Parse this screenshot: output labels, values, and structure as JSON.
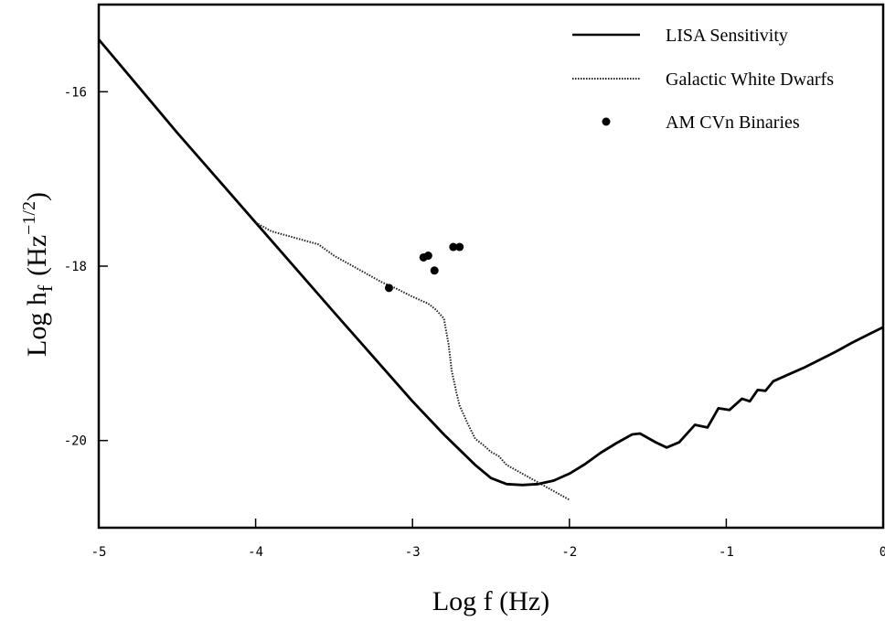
{
  "chart_data": {
    "type": "line",
    "xlabel": "Log f (Hz)",
    "ylabel": "Log h",
    "ylabel_sub": "f",
    "ylabel_unit_open": "(Hz",
    "ylabel_unit_exp": "−1/2",
    "ylabel_unit_close": ")",
    "xlim": [
      -5,
      0
    ],
    "ylim": [
      -21,
      -15
    ],
    "xticks": [
      -5,
      -4,
      -3,
      -2,
      -1,
      0
    ],
    "xtick_labels": [
      "-5",
      "-4",
      "-3",
      "-2",
      "-1",
      "0"
    ],
    "yticks": [
      -16,
      -18,
      -20
    ],
    "ytick_labels": [
      "-16",
      "-18",
      "-20"
    ],
    "grid": false,
    "legend_position": "top-right",
    "series": [
      {
        "name": "LISA Sensitivity",
        "style": "solid",
        "x": [
          -5,
          -4.5,
          -4,
          -3.5,
          -3,
          -2.8,
          -2.6,
          -2.5,
          -2.4,
          -2.3,
          -2.2,
          -2.1,
          -2.0,
          -1.9,
          -1.8,
          -1.7,
          -1.6,
          -1.55,
          -1.45,
          -1.38,
          -1.3,
          -1.2,
          -1.12,
          -1.05,
          -0.98,
          -0.9,
          -0.85,
          -0.8,
          -0.75,
          -0.7,
          -0.6,
          -0.5,
          -0.4,
          -0.3,
          -0.2,
          -0.1,
          0
        ],
        "y": [
          -15.4,
          -16.47,
          -17.5,
          -18.53,
          -19.55,
          -19.93,
          -20.28,
          -20.43,
          -20.5,
          -20.51,
          -20.5,
          -20.46,
          -20.38,
          -20.27,
          -20.14,
          -20.03,
          -19.93,
          -19.92,
          -20.02,
          -20.08,
          -20.02,
          -19.82,
          -19.85,
          -19.63,
          -19.65,
          -19.52,
          -19.55,
          -19.42,
          -19.43,
          -19.32,
          -19.24,
          -19.16,
          -19.07,
          -18.98,
          -18.88,
          -18.79,
          -18.7
        ]
      },
      {
        "name": "Galactic White Dwarfs",
        "style": "dotted",
        "x": [
          -4.0,
          -3.9,
          -3.8,
          -3.7,
          -3.6,
          -3.5,
          -3.4,
          -3.3,
          -3.2,
          -3.1,
          -3.0,
          -2.9,
          -2.85,
          -2.8,
          -2.77,
          -2.75,
          -2.72,
          -2.7,
          -2.65,
          -2.6,
          -2.55,
          -2.5,
          -2.45,
          -2.4,
          -2.3,
          -2.2,
          -2.1,
          -2.0
        ],
        "y": [
          -17.5,
          -17.6,
          -17.65,
          -17.7,
          -17.75,
          -17.88,
          -17.98,
          -18.08,
          -18.18,
          -18.26,
          -18.35,
          -18.43,
          -18.5,
          -18.6,
          -18.9,
          -19.2,
          -19.45,
          -19.6,
          -19.8,
          -19.98,
          -20.05,
          -20.13,
          -20.18,
          -20.28,
          -20.38,
          -20.48,
          -20.58,
          -20.68
        ]
      },
      {
        "name": "AM CVn Binaries",
        "style": "points",
        "x": [
          -3.15,
          -2.93,
          -2.9,
          -2.86,
          -2.74,
          -2.7
        ],
        "y": [
          -18.25,
          -17.9,
          -17.88,
          -18.05,
          -17.78,
          -17.78
        ]
      }
    ]
  }
}
